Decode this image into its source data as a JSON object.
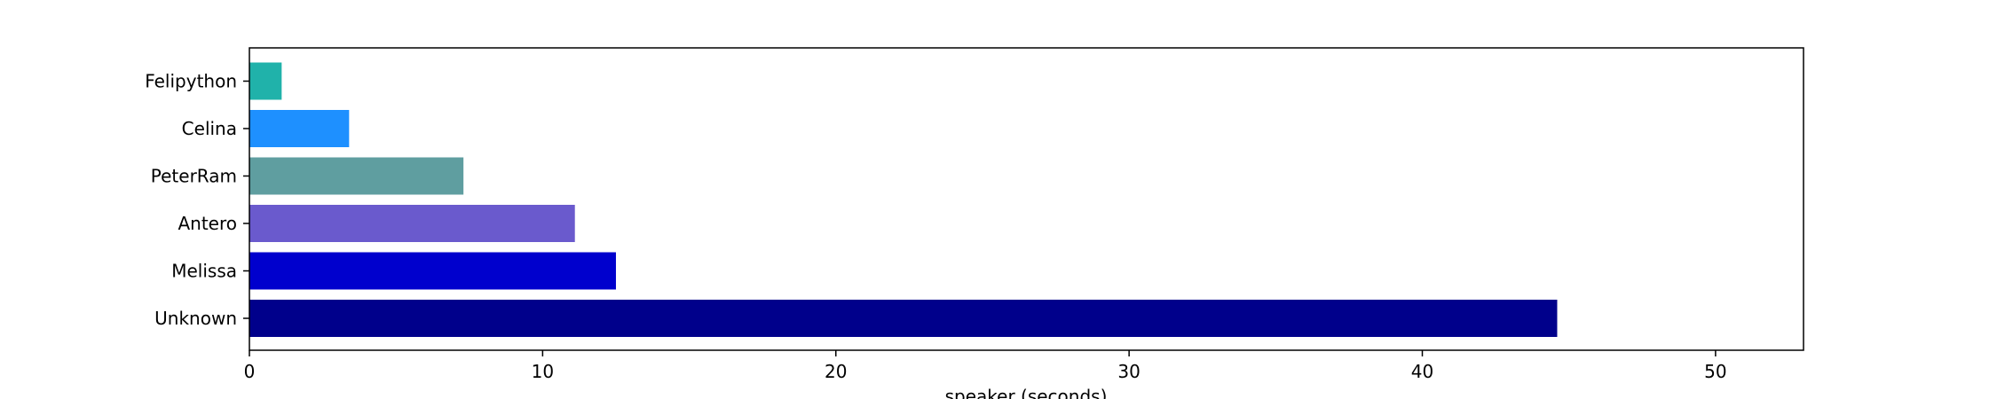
{
  "chart_data": {
    "type": "bar",
    "orientation": "horizontal",
    "categories": [
      "Unknown",
      "Melissa",
      "Antero",
      "PeterRam",
      "Celina",
      "Felipython"
    ],
    "values": [
      44.6,
      12.5,
      11.1,
      7.3,
      3.4,
      1.1
    ],
    "colors": [
      "#00008b",
      "#0000cd",
      "#6a5acd",
      "#5f9ea0",
      "#1e90ff",
      "#20b2aa"
    ],
    "xlabel": "speaker (seconds)",
    "ylabel": "",
    "title": "",
    "xlim": [
      0,
      53
    ],
    "xticks": [
      0,
      10,
      20,
      30,
      40,
      50
    ],
    "grid": false,
    "legend": false
  }
}
